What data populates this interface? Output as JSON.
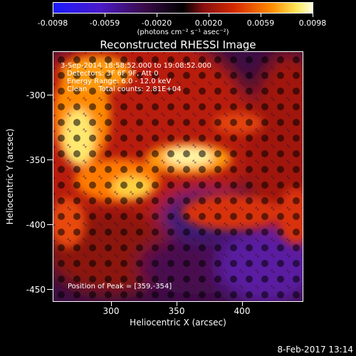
{
  "colorbar": {
    "tick_labels": [
      "-0.0098",
      "-0.0059",
      "-0.0020",
      "0.0020",
      "0.0059",
      "0.0098"
    ],
    "units": "(photons cm⁻² s⁻¹ asec⁻²)"
  },
  "title": "Reconstructed RHESSI Image",
  "annotations": {
    "time_range": "3-Sep-2014 18:58:52.000 to 19:08:52.000",
    "detectors": "Detectors: 3F 6F 9F, Att 0",
    "energy": "Energy Range: 6.0 - 12.0 keV",
    "clean": "Clean     Total counts: 2.81E+04",
    "peak": "Position of Peak = [359,-354]"
  },
  "axes": {
    "x_label": "Heliocentric X (arcsec)",
    "y_label": "Heliocentric Y (arcsec)",
    "x_ticks": [
      "300",
      "350",
      "400"
    ],
    "y_ticks": [
      "-300",
      "-350",
      "-400",
      "-450"
    ]
  },
  "datestamp": "8-Feb-2017 13:14"
}
